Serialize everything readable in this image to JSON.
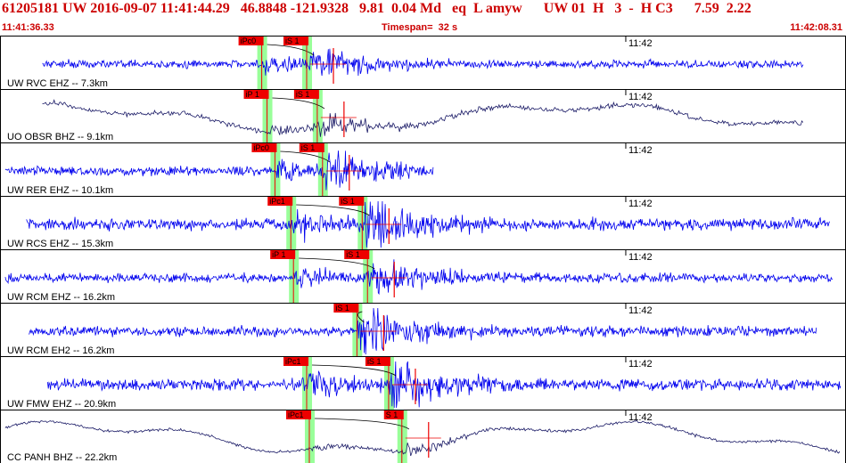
{
  "header": {
    "title": "61205181 UW 2016-09-07 11:41:44.29   46.8848 -121.9328   9.81  0.04 Md   eq  L amyw      UW 01  H   3  -  H C3      7.59  2.22",
    "start_time": "11:41:36.33",
    "timespan": "Timespan=  32 s",
    "end_time": "11:42:08.31"
  },
  "colors": {
    "header_text": "#cc0000",
    "trace_short_period": "#0000ee",
    "trace_broadband": "#1a1a66",
    "pick_box": "#ee0000",
    "pick_window": "#99ff99",
    "coda_line": "#000000",
    "panel_border": "#000000"
  },
  "chart_data": {
    "type": "line",
    "title": "61205181 UW 2016-09-07 11:41:44.29",
    "x_unit": "seconds after 11:41:36.33",
    "xlim": [
      0,
      32
    ],
    "minute_marker": {
      "label": "11:42",
      "t": 23.67
    },
    "traces": [
      {
        "label": "UW RVC EHZ -- 7.3km",
        "channel": "EHZ",
        "kind": "short",
        "amp": 0.35,
        "long_period": 0,
        "signal_start": 1.6,
        "signal_end": 30.4,
        "picks": [
          {
            "label": "iPc0",
            "t": 9.9
          },
          {
            "label": "iS 1",
            "t": 11.6
          }
        ]
      },
      {
        "label": "UO OBSR BHZ -- 9.1km",
        "channel": "BHZ",
        "kind": "broad",
        "amp": 0.45,
        "long_period": 0.7,
        "signal_start": 1.6,
        "signal_end": 30.4,
        "picks": [
          {
            "label": "iP 1",
            "t": 10.1
          },
          {
            "label": "iS 1",
            "t": 12.0
          }
        ]
      },
      {
        "label": "UW RER EHZ -- 10.1km",
        "channel": "EHZ",
        "kind": "short",
        "amp": 0.4,
        "long_period": 0,
        "signal_start": 0.2,
        "signal_end": 16.4,
        "picks": [
          {
            "label": "iPc0",
            "t": 10.4
          },
          {
            "label": "iS 1",
            "t": 12.2
          }
        ]
      },
      {
        "label": "UW RCS EHZ -- 15.3km",
        "channel": "EHZ",
        "kind": "short",
        "amp": 0.5,
        "long_period": 0,
        "signal_start": 1.0,
        "signal_end": 31.4,
        "picks": [
          {
            "label": "iPc1",
            "t": 11.0
          },
          {
            "label": "iS 1",
            "t": 13.7
          }
        ]
      },
      {
        "label": "UW RCM EHZ -- 16.2km",
        "channel": "EHZ",
        "kind": "short",
        "amp": 0.4,
        "long_period": 0,
        "signal_start": 0.2,
        "signal_end": 31.5,
        "picks": [
          {
            "label": "iP 1",
            "t": 11.1
          },
          {
            "label": "iS 1",
            "t": 13.9
          }
        ]
      },
      {
        "label": "UW RCM EH2 -- 16.2km",
        "channel": "EH2",
        "kind": "short",
        "amp": 0.45,
        "long_period": 0,
        "signal_start": 1.1,
        "signal_end": 30.9,
        "picks": [
          {
            "label": "iS 1",
            "t": 13.5
          }
        ]
      },
      {
        "label": "UW FMW EHZ -- 20.9km",
        "channel": "EHZ",
        "kind": "short",
        "amp": 0.5,
        "long_period": 0,
        "signal_start": 1.8,
        "signal_end": 31.8,
        "picks": [
          {
            "label": "iPc1",
            "t": 11.6
          },
          {
            "label": "iS 1",
            "t": 14.7
          }
        ]
      },
      {
        "label": "CC PANH BHZ -- 22.2km",
        "channel": "BHZ",
        "kind": "broad",
        "amp": 0.25,
        "long_period": 0.8,
        "signal_start": 0.2,
        "signal_end": 31.8,
        "picks": [
          {
            "label": "iPc1",
            "t": 11.7
          },
          {
            "label": "S 1",
            "t": 15.2
          }
        ]
      }
    ]
  }
}
